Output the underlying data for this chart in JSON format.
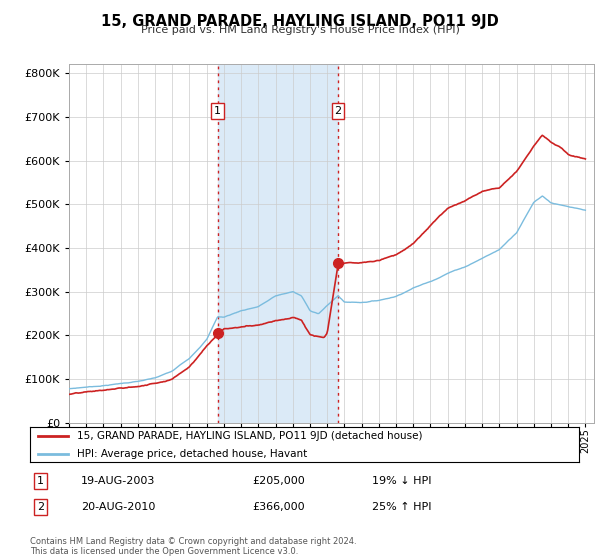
{
  "title": "15, GRAND PARADE, HAYLING ISLAND, PO11 9JD",
  "subtitle": "Price paid vs. HM Land Registry's House Price Index (HPI)",
  "sale1_date": 2003.633,
  "sale1_price": 205000,
  "sale2_date": 2010.633,
  "sale2_price": 366000,
  "hpi_color": "#7bbcde",
  "price_color": "#cc2222",
  "shading_color": "#dbeaf7",
  "ylim": [
    0,
    820000
  ],
  "xlim_start": 1995.0,
  "xlim_end": 2025.5,
  "legend_label1": "15, GRAND PARADE, HAYLING ISLAND, PO11 9JD (detached house)",
  "legend_label2": "HPI: Average price, detached house, Havant",
  "footer1": "Contains HM Land Registry data © Crown copyright and database right 2024.",
  "footer2": "This data is licensed under the Open Government Licence v3.0.",
  "table_row1": [
    "1",
    "19-AUG-2003",
    "£205,000",
    "19% ↓ HPI"
  ],
  "table_row2": [
    "2",
    "20-AUG-2010",
    "£366,000",
    "25% ↑ HPI"
  ],
  "hpi_key_x": [
    1995,
    1996,
    1997,
    1998,
    1999,
    2000,
    2001,
    2002,
    2003,
    2003.633,
    2004,
    2005,
    2006,
    2007,
    2008,
    2008.5,
    2009,
    2009.5,
    2010,
    2010.633,
    2011,
    2012,
    2013,
    2014,
    2015,
    2016,
    2017,
    2018,
    2019,
    2020,
    2021,
    2022,
    2022.5,
    2023,
    2023.5,
    2024,
    2025
  ],
  "hpi_key_y": [
    78000,
    82000,
    86000,
    91000,
    96000,
    103000,
    118000,
    148000,
    192000,
    244000,
    243000,
    258000,
    268000,
    292000,
    302000,
    292000,
    258000,
    252000,
    270000,
    292800,
    278000,
    278000,
    283000,
    293000,
    313000,
    328000,
    348000,
    363000,
    383000,
    403000,
    443000,
    513000,
    528000,
    513000,
    508000,
    503000,
    493000
  ],
  "prop_key_x": [
    1995,
    1996,
    1997,
    1998,
    1999,
    2000,
    2001,
    2002,
    2003,
    2003.633,
    2004,
    2005,
    2006,
    2007,
    2008,
    2008.5,
    2009,
    2009.5,
    2009.8,
    2010,
    2010.633,
    2011,
    2012,
    2013,
    2014,
    2015,
    2016,
    2017,
    2018,
    2019,
    2020,
    2021,
    2022,
    2022.5,
    2023,
    2023.5,
    2024,
    2024.5,
    2025
  ],
  "prop_key_y": [
    65000,
    68000,
    72000,
    76000,
    80000,
    88000,
    100000,
    130000,
    178000,
    205000,
    218000,
    222000,
    228000,
    240000,
    248000,
    242000,
    208000,
    203000,
    200000,
    210000,
    366000,
    368000,
    368000,
    373000,
    388000,
    413000,
    453000,
    493000,
    513000,
    533000,
    543000,
    583000,
    643000,
    668000,
    653000,
    643000,
    623000,
    618000,
    613000
  ]
}
